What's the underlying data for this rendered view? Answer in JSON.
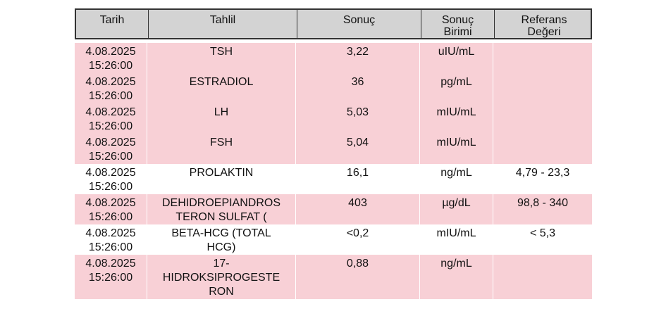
{
  "header": [
    "Tarih",
    "Tahlil",
    "Sonuç",
    "Sonuç\nBirimi",
    "Referans\nDeğeri"
  ],
  "rows": [
    {
      "date": "4.08.2025\n15:26:00",
      "test": "TSH",
      "result": "3,22",
      "unit": "uIU/mL",
      "ref": "",
      "highlight": true
    },
    {
      "date": "4.08.2025\n15:26:00",
      "test": "ESTRADIOL",
      "result": "36",
      "unit": "pg/mL",
      "ref": "",
      "highlight": true
    },
    {
      "date": "4.08.2025\n15:26:00",
      "test": "LH",
      "result": "5,03",
      "unit": "mIU/mL",
      "ref": "",
      "highlight": true
    },
    {
      "date": "4.08.2025\n15:26:00",
      "test": "FSH",
      "result": "5,04",
      "unit": "mIU/mL",
      "ref": "",
      "highlight": true
    },
    {
      "date": "4.08.2025\n15:26:00",
      "test": "PROLAKTIN",
      "result": "16,1",
      "unit": "ng/mL",
      "ref": "4,79 - 23,3",
      "highlight": false
    },
    {
      "date": "4.08.2025\n15:26:00",
      "test": "DEHIDROEPIANDROS\nTERON SULFAT (",
      "result": "403",
      "unit": "µg/dL",
      "ref": "98,8 - 340",
      "highlight": true
    },
    {
      "date": "4.08.2025\n15:26:00",
      "test": "BETA-HCG (TOTAL\nHCG)",
      "result": "<0,2",
      "unit": "mIU/mL",
      "ref": "<      5,3",
      "highlight": false
    },
    {
      "date": "4.08.2025\n15:26:00",
      "test": "17-\nHIDROKSIPROGESTE\nRON",
      "result": "0,88",
      "unit": "ng/mL",
      "ref": "",
      "highlight": true
    }
  ],
  "colors": {
    "highlight": "#f8d0d6",
    "header": "#d3d3d3"
  }
}
